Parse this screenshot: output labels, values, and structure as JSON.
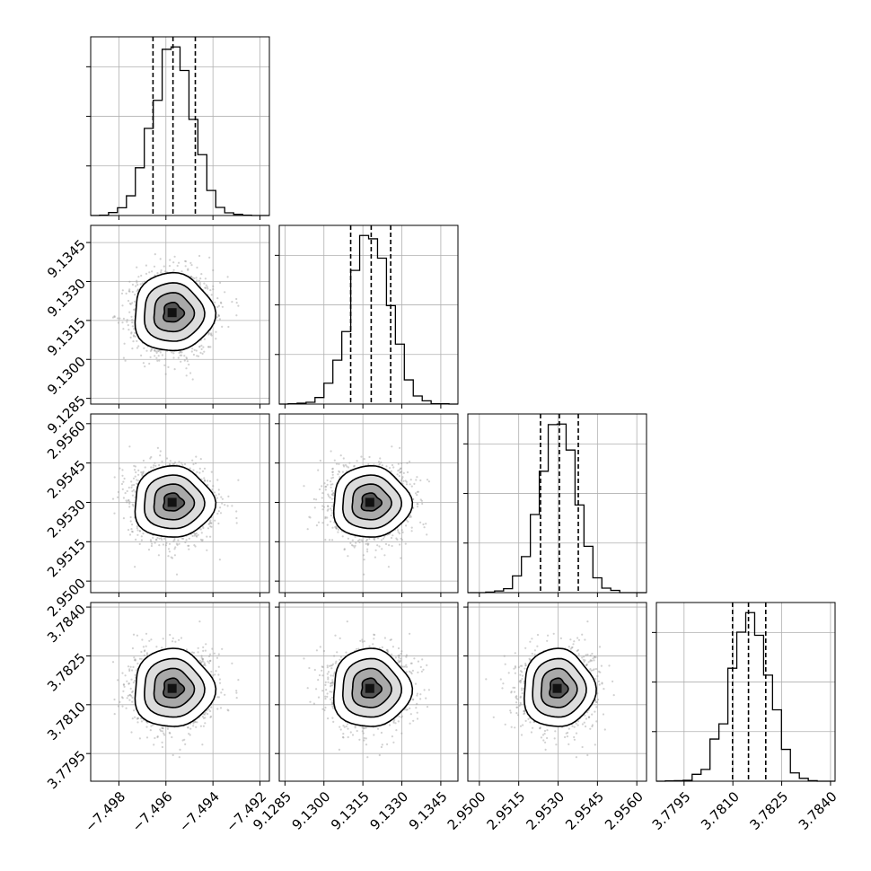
{
  "chart_data": {
    "type": "corner",
    "title": "",
    "grid": true,
    "parameters": [
      {
        "range": [
          -7.4992,
          -7.4916
        ],
        "ticks": [
          -7.498,
          -7.496,
          -7.494,
          -7.492
        ],
        "tick_labels": [
          "−7.498",
          "−7.496",
          "−7.494",
          "−7.492"
        ],
        "mean": -7.4957,
        "sigma": 0.00085,
        "quantiles": [
          -7.49655,
          -7.4957,
          -7.49475
        ]
      },
      {
        "range": [
          9.12828,
          9.13516
        ],
        "ticks": [
          9.1285,
          9.13,
          9.1315,
          9.133,
          9.1345
        ],
        "tick_labels": [
          "9.1285",
          "9.1300",
          "9.1315",
          "9.1330",
          "9.1345"
        ],
        "mean": 9.1318,
        "sigma": 0.00075,
        "quantiles": [
          9.13103,
          9.13182,
          9.13257
        ]
      },
      {
        "range": [
          2.94956,
          2.95637
        ],
        "ticks": [
          2.95,
          2.9515,
          2.953,
          2.9545,
          2.956
        ],
        "tick_labels": [
          "2.9500",
          "2.9515",
          "2.9530",
          "2.9545",
          "2.9560"
        ],
        "mean": 2.953,
        "sigma": 0.00068,
        "quantiles": [
          2.95233,
          2.95305,
          2.95377
        ]
      },
      {
        "range": [
          3.77865,
          3.78414
        ],
        "ticks": [
          3.7795,
          3.781,
          3.7825,
          3.784
        ],
        "tick_labels": [
          "3.7795",
          "3.7810",
          "3.7825",
          "3.7840"
        ],
        "mean": 3.7815,
        "sigma": 0.0006,
        "quantiles": [
          3.78099,
          3.78148,
          3.78201
        ]
      }
    ]
  }
}
